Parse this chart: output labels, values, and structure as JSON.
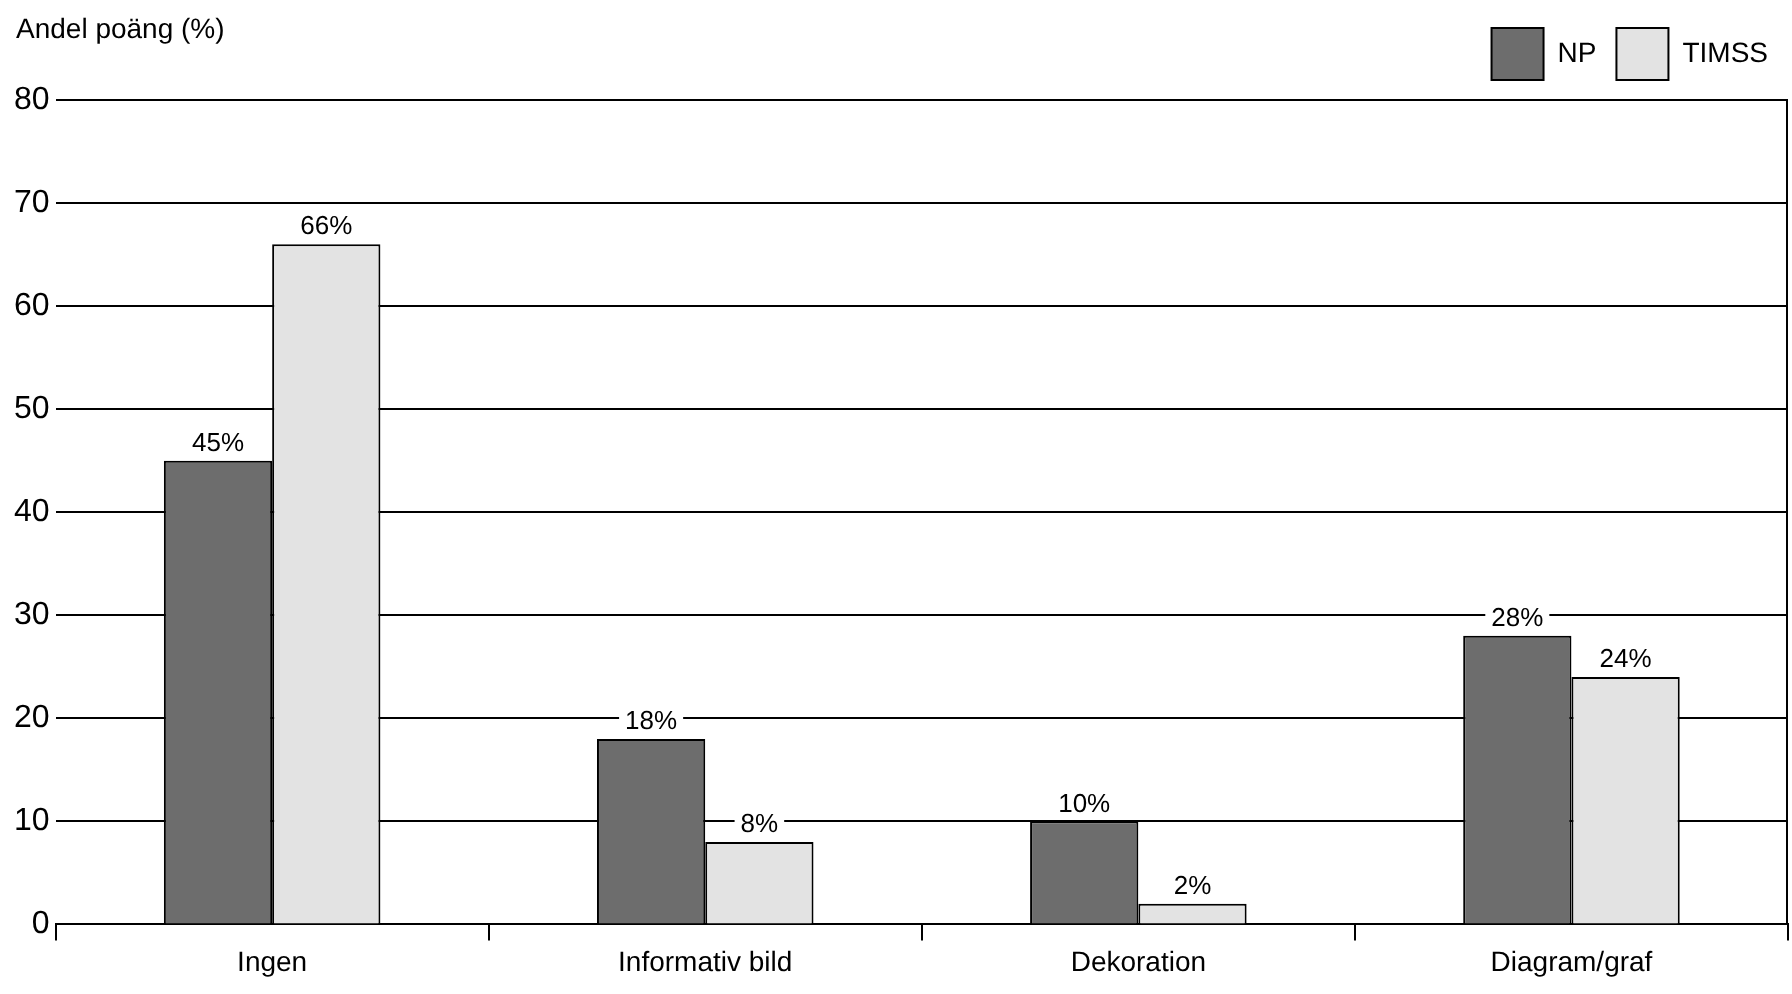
{
  "chart_data": {
    "type": "bar",
    "ylabel": "Andel poäng (%)",
    "categories": [
      "Ingen",
      "Informativ bild",
      "Dekoration",
      "Diagram/graf"
    ],
    "series": [
      {
        "name": "NP",
        "color": "#6d6d6d",
        "values": [
          45,
          18,
          10,
          28
        ],
        "value_labels": [
          "45%",
          "18%",
          "10%",
          "28%"
        ]
      },
      {
        "name": "TIMSS",
        "color": "#e3e3e3",
        "values": [
          66,
          8,
          2,
          24
        ],
        "value_labels": [
          "66%",
          "8%",
          "2%",
          "24%"
        ]
      }
    ],
    "ylim": [
      0,
      80
    ],
    "yticks": [
      0,
      10,
      20,
      30,
      40,
      50,
      60,
      70,
      80
    ],
    "grid": "y",
    "legend": "top right"
  }
}
